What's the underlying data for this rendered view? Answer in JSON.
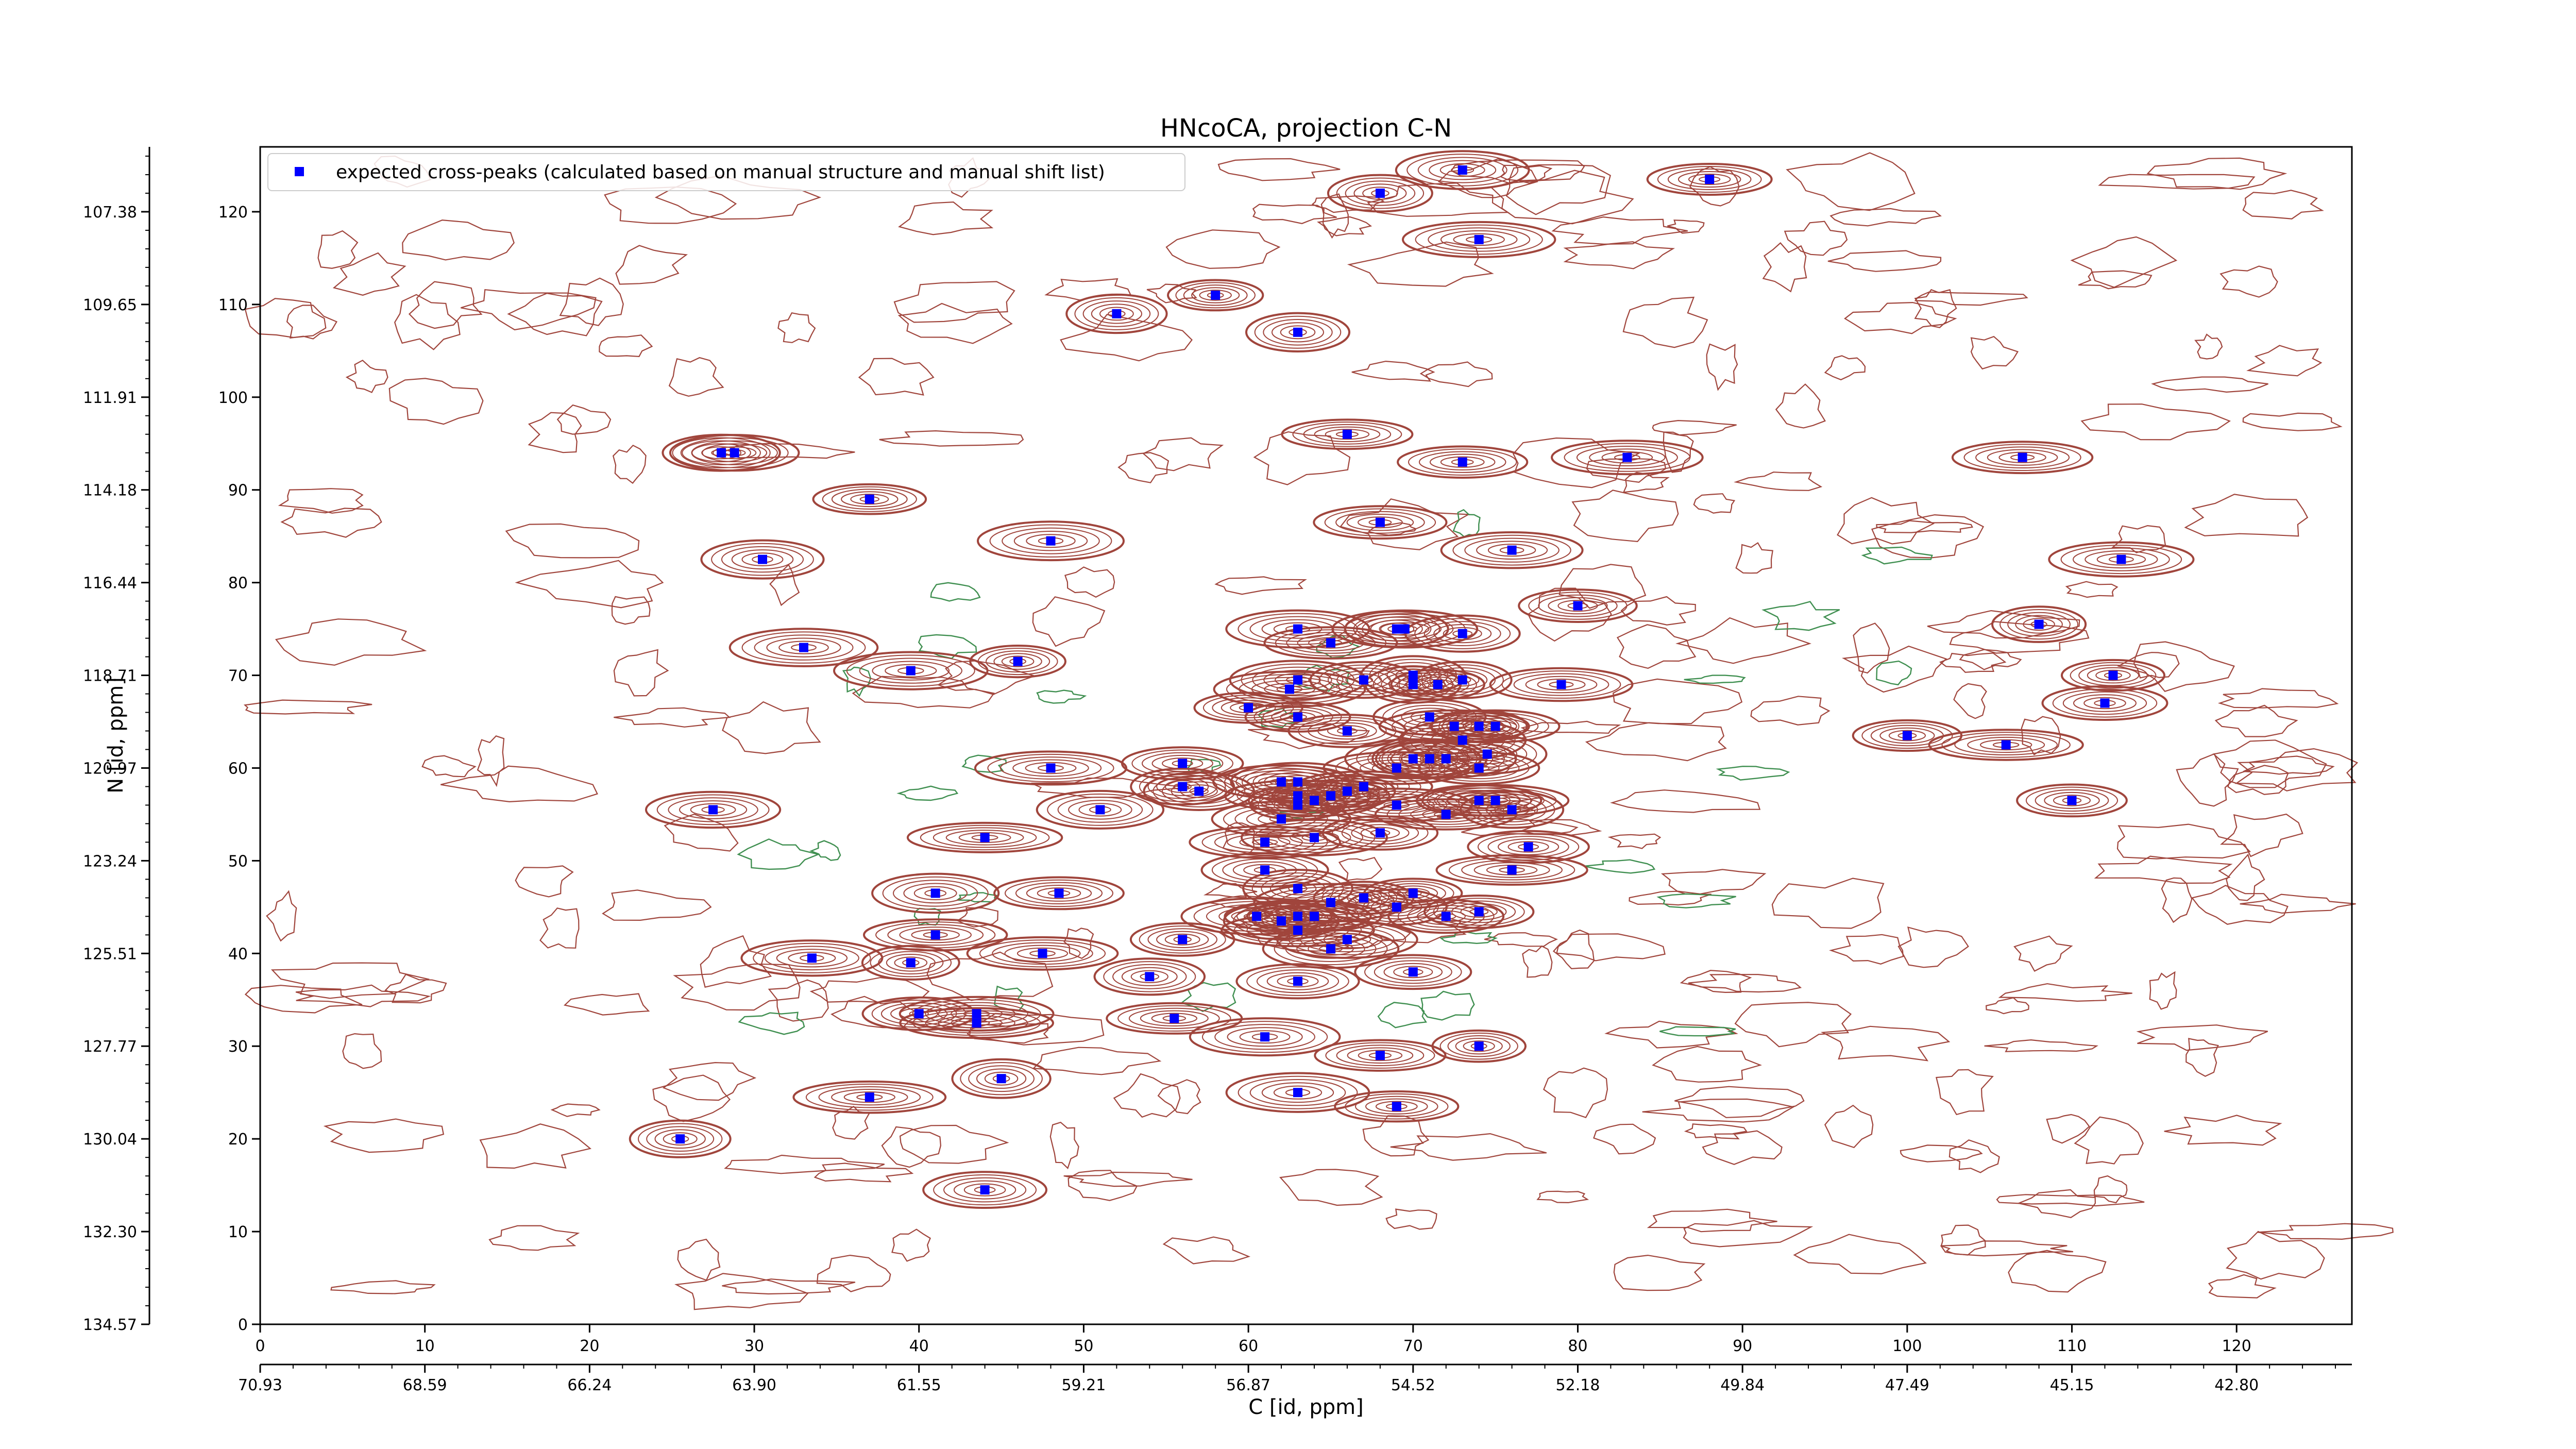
{
  "chart_data": {
    "type": "scatter",
    "title": "HNcoCA, projection C-N",
    "xlabel": "C [id, ppm]",
    "ylabel": "N [id, ppm]",
    "xlim": [
      0,
      127
    ],
    "ylim": [
      0,
      127
    ],
    "x_ticks": [
      "0",
      "10",
      "20",
      "30",
      "40",
      "50",
      "60",
      "70",
      "80",
      "90",
      "100",
      "110",
      "120"
    ],
    "y_ticks": [
      "0",
      "10",
      "20",
      "30",
      "40",
      "50",
      "60",
      "70",
      "80",
      "90",
      "100",
      "110",
      "120"
    ],
    "x_ppm_ticks": [
      "70.93",
      "68.59",
      "66.24",
      "63.90",
      "61.55",
      "59.21",
      "56.87",
      "54.52",
      "52.18",
      "49.84",
      "47.49",
      "45.15",
      "42.80"
    ],
    "y_ppm_ticks": [
      "134.57",
      "132.30",
      "130.04",
      "127.77",
      "125.51",
      "123.24",
      "120.97",
      "118.71",
      "116.44",
      "114.18",
      "111.91",
      "109.65",
      "107.38"
    ],
    "legend": {
      "label": "expected cross-peaks (calculated based on manual structure and manual shift list)",
      "position": "upper-left"
    },
    "colors": {
      "peaks": "#0000ff",
      "positive_contours": "#a0453c",
      "negative_contours": "#3f8f50"
    },
    "series": [
      {
        "name": "expected cross-peaks (calculated based on manual structure and manual shift list)",
        "points": [
          [
            88,
            123.5
          ],
          [
            68,
            122
          ],
          [
            73,
            124.5
          ],
          [
            74,
            117
          ],
          [
            58,
            111
          ],
          [
            52,
            109
          ],
          [
            63,
            107
          ],
          [
            66,
            96
          ],
          [
            73,
            93
          ],
          [
            83,
            93.5
          ],
          [
            107,
            93.5
          ],
          [
            28,
            94
          ],
          [
            28.8,
            94
          ],
          [
            37,
            89
          ],
          [
            30.5,
            82.5
          ],
          [
            48,
            84.5
          ],
          [
            68,
            86.5
          ],
          [
            76,
            83.5
          ],
          [
            113,
            82.5
          ],
          [
            80,
            77.5
          ],
          [
            63,
            75
          ],
          [
            65,
            73.5
          ],
          [
            69,
            75
          ],
          [
            69.5,
            75
          ],
          [
            73,
            74.5
          ],
          [
            108,
            75.5
          ],
          [
            33,
            73
          ],
          [
            39.5,
            70.5
          ],
          [
            46,
            71.5
          ],
          [
            63,
            69.5
          ],
          [
            62.5,
            68.5
          ],
          [
            67,
            69.5
          ],
          [
            70,
            70
          ],
          [
            70,
            69
          ],
          [
            71.5,
            69
          ],
          [
            73,
            69.5
          ],
          [
            79,
            69
          ],
          [
            60,
            66.5
          ],
          [
            112,
            67
          ],
          [
            112.5,
            70
          ],
          [
            63,
            65.5
          ],
          [
            66,
            64
          ],
          [
            71,
            65.5
          ],
          [
            72.5,
            64.5
          ],
          [
            73,
            63
          ],
          [
            74,
            64.5
          ],
          [
            75,
            64.5
          ],
          [
            100,
            63.5
          ],
          [
            106,
            62.5
          ],
          [
            48,
            60
          ],
          [
            51,
            55.5
          ],
          [
            56,
            58
          ],
          [
            57,
            57.5
          ],
          [
            56,
            60.5
          ],
          [
            62,
            58.5
          ],
          [
            63,
            58.5
          ],
          [
            63,
            57
          ],
          [
            63,
            56
          ],
          [
            64,
            56.5
          ],
          [
            65,
            57
          ],
          [
            66,
            57.5
          ],
          [
            67,
            58
          ],
          [
            69,
            60
          ],
          [
            70,
            61
          ],
          [
            71,
            61
          ],
          [
            72,
            61
          ],
          [
            74,
            60
          ],
          [
            74.5,
            61.5
          ],
          [
            74,
            56.5
          ],
          [
            75,
            56.5
          ],
          [
            76,
            55.5
          ],
          [
            62,
            54.5
          ],
          [
            68,
            53
          ],
          [
            69,
            56
          ],
          [
            72,
            55
          ],
          [
            61,
            52
          ],
          [
            64,
            52.5
          ],
          [
            44,
            52.5
          ],
          [
            27.5,
            55.5
          ],
          [
            110,
            56.5
          ],
          [
            61,
            49
          ],
          [
            76,
            49
          ],
          [
            77,
            51.5
          ],
          [
            41,
            46.5
          ],
          [
            48.5,
            46.5
          ],
          [
            63,
            47
          ],
          [
            65,
            45.5
          ],
          [
            67,
            46
          ],
          [
            70,
            46.5
          ],
          [
            60.5,
            44
          ],
          [
            63,
            44
          ],
          [
            64,
            44
          ],
          [
            62,
            43.5
          ],
          [
            63,
            42.5
          ],
          [
            66,
            41.5
          ],
          [
            72,
            44
          ],
          [
            69,
            45
          ],
          [
            74,
            44.5
          ],
          [
            56,
            41.5
          ],
          [
            65,
            40.5
          ],
          [
            41,
            42
          ],
          [
            33.5,
            39.5
          ],
          [
            39.5,
            39
          ],
          [
            47.5,
            40
          ],
          [
            54,
            37.5
          ],
          [
            70,
            38
          ],
          [
            63,
            37
          ],
          [
            40,
            33.5
          ],
          [
            43.5,
            33.5
          ],
          [
            43.5,
            32.5
          ],
          [
            55.5,
            33
          ],
          [
            61,
            31
          ],
          [
            74,
            30
          ],
          [
            68,
            29
          ],
          [
            45,
            26.5
          ],
          [
            37,
            24.5
          ],
          [
            63,
            25
          ],
          [
            69,
            23.5
          ],
          [
            25.5,
            20
          ],
          [
            44,
            14.5
          ]
        ]
      }
    ]
  }
}
